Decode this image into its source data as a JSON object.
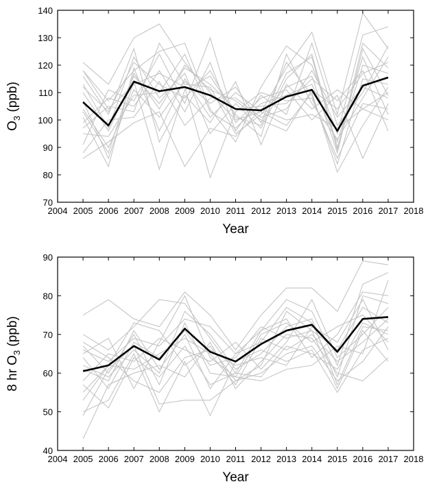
{
  "chart_data": [
    {
      "type": "line",
      "xlabel": "Year",
      "ylabel": "O",
      "ylabel_sub": "3",
      "ylabel_suffix": " (ppb)",
      "xlim": [
        2004,
        2018
      ],
      "ylim": [
        70,
        140
      ],
      "xticks": [
        2004,
        2005,
        2006,
        2007,
        2008,
        2009,
        2010,
        2011,
        2012,
        2013,
        2014,
        2015,
        2016,
        2017,
        2018
      ],
      "yticks": [
        70,
        80,
        90,
        100,
        110,
        120,
        130,
        140
      ],
      "x": [
        2005,
        2006,
        2007,
        2008,
        2009,
        2010,
        2011,
        2012,
        2013,
        2014,
        2015,
        2016,
        2017
      ],
      "mean": {
        "values": [
          106.5,
          98,
          114,
          110.5,
          112,
          109,
          104,
          103.5,
          108.5,
          111,
          96,
          112.5,
          115.5
        ],
        "color": "#000000"
      },
      "site_color": "#c4c4c4",
      "sites": [
        [
          121,
          113,
          130,
          135,
          121,
          110,
          100,
          103,
          119,
          132,
          102,
          139,
          126
        ],
        [
          118,
          107,
          118,
          125,
          128,
          104,
          92,
          112,
          127,
          120,
          95,
          131,
          134
        ],
        [
          112,
          103,
          121,
          113,
          108,
          118,
          101,
          98,
          117,
          123,
          89,
          128,
          119
        ],
        [
          110,
          96,
          116,
          106,
          119,
          113,
          104,
          105,
          106,
          115,
          107,
          118,
          96
        ],
        [
          104,
          90,
          111,
          101,
          114,
          106,
          112,
          99,
          121,
          109,
          84,
          115,
          113
        ],
        [
          99,
          108,
          105,
          118,
          103,
          121,
          96,
          109,
          102,
          128,
          98,
          110,
          127
        ],
        [
          116,
          102,
          126,
          92,
          109,
          99,
          114,
          91,
          113,
          104,
          111,
          104,
          110
        ],
        [
          95,
          94,
          109,
          110,
          124,
          103,
          97,
          106,
          109,
          113,
          92,
          123,
          102
        ],
        [
          107,
          86,
          114,
          82,
          111,
          116,
          102,
          94,
          124,
          106,
          93,
          108,
          123
        ],
        [
          88,
          100,
          101,
          114,
          98,
          108,
          108,
          101,
          104,
          118,
          101,
          112,
          108
        ],
        [
          101,
          83,
          119,
          96,
          115,
          101,
          110,
          103,
          98,
          110,
          81,
          98,
          112
        ],
        [
          91,
          111,
          107,
          124,
          106,
          130,
          99,
          108,
          111,
          100,
          109,
          86,
          106
        ],
        [
          113,
          97,
          123,
          108,
          117,
          95,
          106,
          97,
          115,
          124,
          90,
          120,
          117
        ],
        [
          86,
          92,
          99,
          103,
          83,
          97,
          94,
          104,
          100,
          102,
          97,
          104,
          100
        ],
        [
          118,
          104,
          113,
          117,
          112,
          79,
          103,
          110,
          107,
          108,
          86,
          106,
          104
        ],
        [
          103,
          88,
          117,
          104,
          120,
          111,
          107,
          100,
          96,
          111,
          104,
          117,
          121
        ],
        [
          97,
          105,
          103,
          128,
          113,
          112,
          95,
          102,
          112,
          116,
          88,
          126,
          109
        ]
      ]
    },
    {
      "type": "line",
      "xlabel": "Year",
      "ylabel": "8 hr O",
      "ylabel_sub": "3",
      "ylabel_suffix": " (ppb)",
      "xlim": [
        2004,
        2018
      ],
      "ylim": [
        40,
        90
      ],
      "xticks": [
        2004,
        2005,
        2006,
        2007,
        2008,
        2009,
        2010,
        2011,
        2012,
        2013,
        2014,
        2015,
        2016,
        2017,
        2018
      ],
      "yticks": [
        40,
        50,
        60,
        70,
        80,
        90
      ],
      "x": [
        2005,
        2006,
        2007,
        2008,
        2009,
        2010,
        2011,
        2012,
        2013,
        2014,
        2015,
        2016,
        2017
      ],
      "mean": {
        "values": [
          60.5,
          62,
          67,
          63.5,
          71.5,
          65.5,
          63,
          67.5,
          71,
          72.5,
          65.5,
          74,
          74.5
        ],
        "color": "#000000"
      },
      "site_color": "#c4c4c4",
      "sites": [
        [
          75,
          79,
          74,
          72,
          81,
          75,
          66,
          75,
          82,
          82,
          76,
          89,
          88
        ],
        [
          70,
          66,
          72,
          79,
          78,
          69,
          60,
          71,
          79,
          76,
          62,
          83,
          86
        ],
        [
          66,
          63,
          69,
          67,
          74,
          72,
          65,
          68,
          77,
          73,
          59,
          80,
          78
        ],
        [
          64,
          56,
          68,
          64,
          71,
          62,
          64,
          72,
          69,
          71,
          66,
          77,
          73
        ],
        [
          62,
          59,
          66,
          60,
          76,
          70,
          61,
          65,
          72,
          74,
          57,
          72,
          71
        ],
        [
          58,
          65,
          63,
          69,
          66,
          63,
          68,
          61,
          68,
          79,
          64,
          70,
          77
        ],
        [
          67,
          60,
          70,
          57,
          73,
          60,
          59,
          70,
          73,
          68,
          72,
          75,
          68
        ],
        [
          55,
          62,
          61,
          65,
          69,
          65,
          57,
          69,
          66,
          70,
          63,
          68,
          74
        ],
        [
          50,
          53,
          65,
          50,
          63,
          49,
          63,
          66,
          63,
          66,
          55,
          66,
          69
        ],
        [
          43,
          57,
          60,
          62,
          59,
          68,
          56,
          63,
          70,
          69,
          60,
          58,
          64
        ],
        [
          57,
          51,
          64,
          59,
          67,
          57,
          60,
          59,
          67,
          65,
          61,
          73,
          70
        ],
        [
          68,
          64,
          58,
          55,
          64,
          66,
          62,
          64,
          62,
          72,
          68,
          79,
          66
        ],
        [
          49,
          61,
          67,
          52,
          53,
          53,
          58,
          60,
          65,
          67,
          58,
          63,
          72
        ],
        [
          61,
          58,
          71,
          61,
          70,
          56,
          65,
          71,
          74,
          64,
          70,
          81,
          80
        ],
        [
          65,
          69,
          56,
          68,
          80,
          64,
          59,
          58,
          61,
          62,
          67,
          65,
          84
        ],
        [
          53,
          62,
          73,
          71,
          62,
          67,
          58,
          62,
          76,
          71,
          56,
          71,
          63
        ]
      ]
    }
  ]
}
